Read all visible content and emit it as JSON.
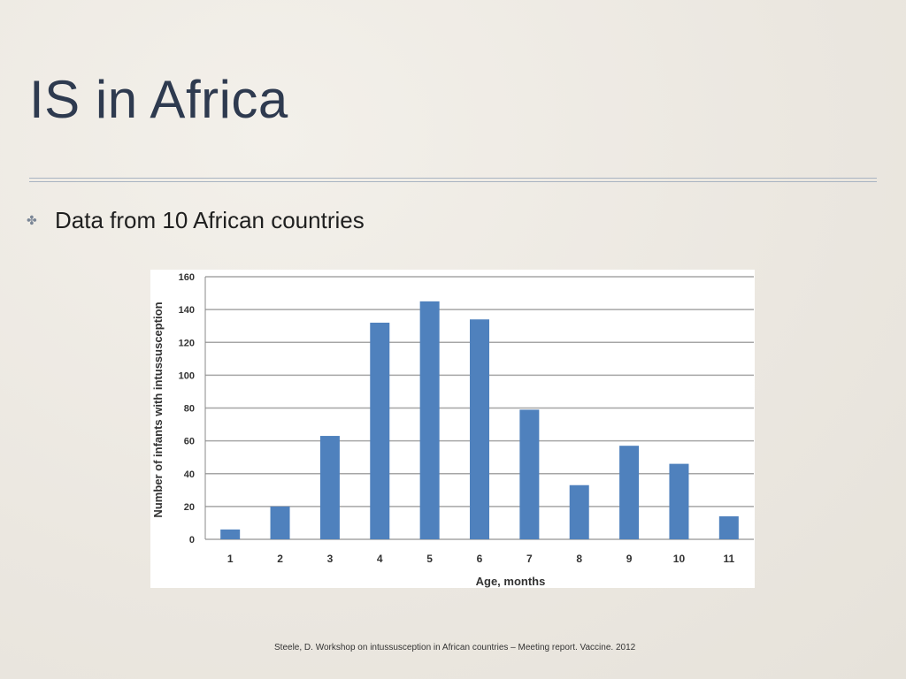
{
  "slide": {
    "title": "IS in Africa",
    "bullet": "Data from 10 African countries",
    "citation": "Steele, D. Workshop on intussusception in African countries – Meeting report. Vaccine. 2012"
  },
  "chart_data": {
    "type": "bar",
    "categories": [
      "1",
      "2",
      "3",
      "4",
      "5",
      "6",
      "7",
      "8",
      "9",
      "10",
      "11"
    ],
    "values": [
      6,
      20,
      63,
      132,
      145,
      134,
      79,
      33,
      57,
      46,
      14
    ],
    "xlabel": "Age, months",
    "ylabel": "Number of infants with intussusception",
    "ylim": [
      0,
      160
    ],
    "yticks": [
      0,
      20,
      40,
      60,
      80,
      100,
      120,
      140,
      160
    ],
    "grid": true,
    "bar_color": "#4f81bd"
  }
}
